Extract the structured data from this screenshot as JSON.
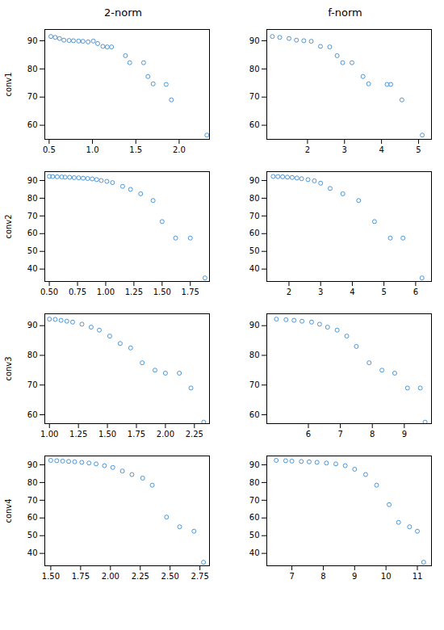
{
  "chart_data": [
    {
      "type": "scatter",
      "title": "2-norm",
      "ylabel": "conv1",
      "x": [
        0.52,
        0.57,
        0.62,
        0.67,
        0.73,
        0.78,
        0.84,
        0.89,
        0.95,
        1.01,
        1.06,
        1.12,
        1.17,
        1.22,
        1.38,
        1.43,
        1.59,
        1.64,
        1.7,
        1.85,
        1.91,
        2.32
      ],
      "values": [
        91.5,
        91.2,
        90.8,
        90.2,
        90.1,
        90.0,
        89.9,
        89.8,
        89.6,
        89.9,
        89.0,
        88.0,
        87.8,
        87.8,
        84.7,
        82.2,
        82.2,
        77.3,
        74.7,
        74.5,
        69.0,
        56.5
      ],
      "xlim": [
        0.45,
        2.35
      ],
      "ylim": [
        55,
        94
      ],
      "xticks": [
        0.5,
        {
          "value": 1.0,
          "label": "1.0"
        },
        1.5,
        {
          "value": 2.0,
          "label": "2.0"
        }
      ],
      "yticks": [
        60,
        70,
        80,
        90
      ],
      "color": "#4C96D7",
      "marker": "circle",
      "grid": false
    },
    {
      "type": "scatter",
      "title": "f-norm",
      "x": [
        1.05,
        1.25,
        1.5,
        1.7,
        1.9,
        2.1,
        2.35,
        2.6,
        2.8,
        2.95,
        3.2,
        3.5,
        3.65,
        4.15,
        4.25,
        4.55,
        5.1
      ],
      "values": [
        91.5,
        91.2,
        90.8,
        90.2,
        90.0,
        89.8,
        88.0,
        87.8,
        84.7,
        82.2,
        82.2,
        77.3,
        74.7,
        74.5,
        74.5,
        69.0,
        56.5
      ],
      "xlim": [
        0.9,
        5.35
      ],
      "ylim": [
        55,
        94
      ],
      "xticks": [
        2,
        3,
        4,
        5
      ],
      "yticks": [
        60,
        70,
        80,
        90
      ],
      "color": "#4C96D7",
      "marker": "circle",
      "grid": false
    },
    {
      "type": "scatter",
      "ylabel": "conv2",
      "x": [
        0.5,
        0.53,
        0.57,
        0.61,
        0.64,
        0.68,
        0.72,
        0.76,
        0.8,
        0.84,
        0.88,
        0.92,
        0.96,
        1.01,
        1.06,
        1.15,
        1.22,
        1.31,
        1.42,
        1.5,
        1.62,
        1.75,
        1.88
      ],
      "values": [
        92.3,
        92.2,
        92.1,
        92.0,
        91.9,
        91.8,
        91.6,
        91.5,
        91.3,
        91.1,
        90.9,
        90.5,
        90.0,
        89.5,
        88.8,
        86.7,
        85.0,
        82.5,
        78.7,
        66.8,
        57.5,
        57.5,
        35.0
      ],
      "xlim": [
        0.46,
        1.92
      ],
      "ylim": [
        33,
        95
      ],
      "xticks": [
        {
          "value": 0.5,
          "label": "0.50"
        },
        0.75,
        {
          "value": 1.0,
          "label": "1.00"
        },
        1.25,
        {
          "value": 1.5,
          "label": "1.50"
        },
        1.75
      ],
      "yticks": [
        40,
        50,
        60,
        70,
        80,
        90
      ],
      "color": "#4C96D7",
      "marker": "circle",
      "grid": false
    },
    {
      "type": "scatter",
      "x": [
        1.5,
        1.65,
        1.8,
        1.95,
        2.1,
        2.25,
        2.4,
        2.6,
        2.8,
        3.0,
        3.3,
        3.7,
        4.2,
        4.7,
        5.2,
        5.6,
        6.2
      ],
      "values": [
        92.3,
        92.2,
        92.1,
        91.9,
        91.7,
        91.4,
        91.0,
        90.5,
        89.8,
        88.5,
        85.5,
        82.5,
        78.7,
        66.8,
        57.5,
        57.5,
        35.0
      ],
      "xlim": [
        1.3,
        6.5
      ],
      "ylim": [
        33,
        95
      ],
      "xticks": [
        2,
        3,
        4,
        5,
        6
      ],
      "yticks": [
        40,
        50,
        60,
        70,
        80,
        90
      ],
      "color": "#4C96D7",
      "marker": "circle",
      "grid": false
    },
    {
      "type": "scatter",
      "ylabel": "conv3",
      "x": [
        1.0,
        1.05,
        1.1,
        1.15,
        1.2,
        1.28,
        1.36,
        1.43,
        1.52,
        1.61,
        1.7,
        1.8,
        1.91,
        2.0,
        2.12,
        2.22,
        2.33
      ],
      "values": [
        92.2,
        92.1,
        91.8,
        91.5,
        91.2,
        90.5,
        89.5,
        88.5,
        86.5,
        84.0,
        82.5,
        77.5,
        75.0,
        74.0,
        74.0,
        69.0,
        57.5
      ],
      "xlim": [
        0.96,
        2.38
      ],
      "ylim": [
        57,
        94
      ],
      "xticks": [
        {
          "value": 1.0,
          "label": "1.00"
        },
        1.25,
        {
          "value": 1.5,
          "label": "1.50"
        },
        1.75,
        {
          "value": 2.0,
          "label": "2.00"
        },
        2.25
      ],
      "yticks": [
        60,
        70,
        80,
        90
      ],
      "color": "#4C96D7",
      "marker": "circle",
      "grid": false
    },
    {
      "type": "scatter",
      "x": [
        5.0,
        5.3,
        5.55,
        5.8,
        6.1,
        6.35,
        6.6,
        6.9,
        7.2,
        7.5,
        7.9,
        8.3,
        8.7,
        9.1,
        9.5,
        9.65
      ],
      "values": [
        92.2,
        92.0,
        91.8,
        91.5,
        91.2,
        90.5,
        89.5,
        88.5,
        86.5,
        83.0,
        77.5,
        75.0,
        74.0,
        69.0,
        69.0,
        57.5
      ],
      "xlim": [
        4.7,
        9.85
      ],
      "ylim": [
        57,
        94
      ],
      "xticks": [
        6,
        7,
        8,
        9
      ],
      "yticks": [
        60,
        70,
        80,
        90
      ],
      "color": "#4C96D7",
      "marker": "circle",
      "grid": false
    },
    {
      "type": "scatter",
      "ylabel": "conv4",
      "x": [
        1.5,
        1.55,
        1.6,
        1.65,
        1.7,
        1.76,
        1.82,
        1.88,
        1.95,
        2.02,
        2.1,
        2.18,
        2.27,
        2.35,
        2.47,
        2.58,
        2.7,
        2.78
      ],
      "values": [
        92.5,
        92.3,
        92.1,
        91.9,
        91.7,
        91.4,
        91.0,
        90.5,
        89.5,
        88.5,
        86.5,
        84.5,
        82.5,
        78.5,
        60.5,
        55.0,
        52.5,
        35.0
      ],
      "xlim": [
        1.45,
        2.83
      ],
      "ylim": [
        33,
        95
      ],
      "xticks": [
        {
          "value": 1.5,
          "label": "1.50"
        },
        1.75,
        {
          "value": 2.0,
          "label": "2.00"
        },
        2.25,
        {
          "value": 2.5,
          "label": "2.50"
        },
        2.75
      ],
      "yticks": [
        40,
        50,
        60,
        70,
        80,
        90
      ],
      "color": "#4C96D7",
      "marker": "circle",
      "grid": false
    },
    {
      "type": "scatter",
      "x": [
        6.5,
        6.8,
        7.0,
        7.3,
        7.55,
        7.8,
        8.1,
        8.4,
        8.7,
        9.0,
        9.35,
        9.7,
        10.1,
        10.4,
        10.75,
        11.0,
        11.2
      ],
      "values": [
        92.5,
        92.3,
        92.1,
        91.9,
        91.7,
        91.4,
        91.0,
        90.5,
        89.5,
        87.5,
        84.5,
        78.5,
        67.5,
        57.5,
        55.0,
        52.5,
        35.0
      ],
      "xlim": [
        6.2,
        11.45
      ],
      "ylim": [
        33,
        95
      ],
      "xticks": [
        7,
        8,
        9,
        10,
        11
      ],
      "yticks": [
        40,
        50,
        60,
        70,
        80,
        90
      ],
      "color": "#4C96D7",
      "marker": "circle",
      "grid": false
    }
  ]
}
